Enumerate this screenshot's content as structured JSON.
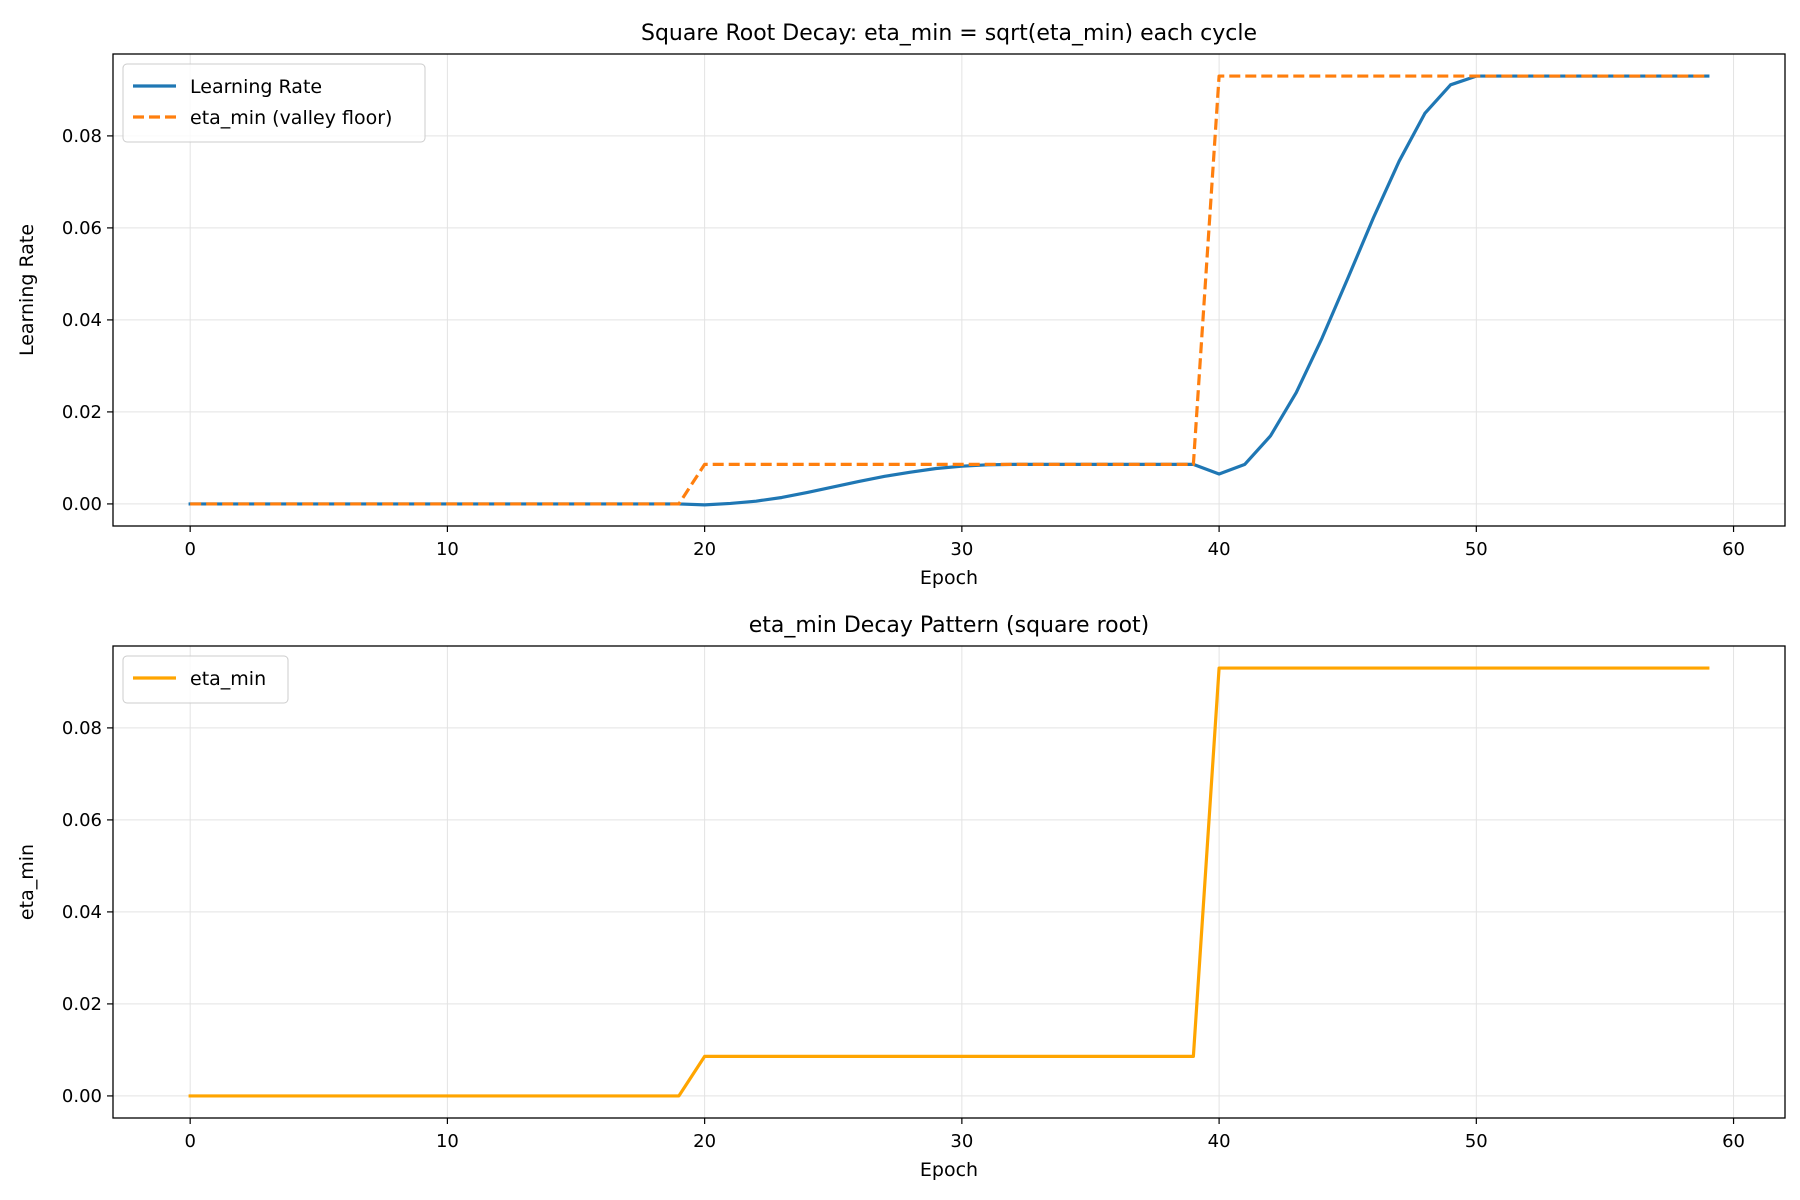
{
  "chart_data": [
    {
      "type": "line",
      "title": "Square Root Decay: eta_min = sqrt(eta_min) each cycle",
      "xlabel": "Epoch",
      "ylabel": "Learning Rate",
      "xlim": [
        -3,
        62
      ],
      "ylim": [
        -0.0048,
        0.0978
      ],
      "xticks": [
        0,
        10,
        20,
        30,
        40,
        50,
        60
      ],
      "yticks": [
        0.0,
        0.02,
        0.04,
        0.06,
        0.08
      ],
      "xtick_labels": [
        "0",
        "10",
        "20",
        "30",
        "40",
        "50",
        "60"
      ],
      "ytick_labels": [
        "0.00",
        "0.02",
        "0.04",
        "0.06",
        "0.08"
      ],
      "grid": true,
      "legend_position": "top-left",
      "series": [
        {
          "name": "Learning Rate",
          "color": "#1f77b4",
          "dash": "solid",
          "x": [
            0,
            1,
            2,
            3,
            4,
            5,
            6,
            7,
            8,
            9,
            10,
            11,
            12,
            13,
            14,
            15,
            16,
            17,
            18,
            19,
            20,
            21,
            22,
            23,
            24,
            25,
            26,
            27,
            28,
            29,
            30,
            31,
            32,
            33,
            34,
            35,
            36,
            37,
            38,
            39,
            40,
            41,
            42,
            43,
            44,
            45,
            46,
            47,
            48,
            49,
            50,
            51,
            52,
            53,
            54,
            55,
            56,
            57,
            58,
            59
          ],
          "y": [
            0.0,
            0.0,
            0.0,
            0.0,
            0.0,
            0.0,
            0.0,
            0.0,
            0.0,
            0.0,
            0.0,
            0.0,
            0.0,
            0.0,
            0.0,
            0.0,
            0.0,
            0.0,
            0.0,
            0.0,
            -0.0002,
            0.0001,
            0.0006,
            0.0014,
            0.0025,
            0.0037,
            0.0049,
            0.006,
            0.0069,
            0.0077,
            0.0082,
            0.0085,
            0.0086,
            0.0086,
            0.0086,
            0.0086,
            0.0086,
            0.0086,
            0.0086,
            0.0086,
            0.0065,
            0.0086,
            0.0148,
            0.0242,
            0.036,
            0.049,
            0.0622,
            0.0745,
            0.0849,
            0.0911,
            0.093,
            0.093,
            0.093,
            0.093,
            0.093,
            0.093,
            0.093,
            0.093,
            0.093,
            0.093
          ]
        },
        {
          "name": "eta_min (valley floor)",
          "color": "#ff7f0e",
          "dash": "dashed",
          "x": [
            0,
            1,
            2,
            3,
            4,
            5,
            6,
            7,
            8,
            9,
            10,
            11,
            12,
            13,
            14,
            15,
            16,
            17,
            18,
            19,
            20,
            21,
            22,
            23,
            24,
            25,
            26,
            27,
            28,
            29,
            30,
            31,
            32,
            33,
            34,
            35,
            36,
            37,
            38,
            39,
            40,
            41,
            42,
            43,
            44,
            45,
            46,
            47,
            48,
            49,
            50,
            51,
            52,
            53,
            54,
            55,
            56,
            57,
            58,
            59
          ],
          "y": [
            0.0,
            0.0,
            0.0,
            0.0,
            0.0,
            0.0,
            0.0,
            0.0,
            0.0,
            0.0,
            0.0,
            0.0,
            0.0,
            0.0,
            0.0,
            0.0,
            0.0,
            0.0,
            0.0,
            0.0,
            0.0086,
            0.0086,
            0.0086,
            0.0086,
            0.0086,
            0.0086,
            0.0086,
            0.0086,
            0.0086,
            0.0086,
            0.0086,
            0.0086,
            0.0086,
            0.0086,
            0.0086,
            0.0086,
            0.0086,
            0.0086,
            0.0086,
            0.0086,
            0.093,
            0.093,
            0.093,
            0.093,
            0.093,
            0.093,
            0.093,
            0.093,
            0.093,
            0.093,
            0.093,
            0.093,
            0.093,
            0.093,
            0.093,
            0.093,
            0.093,
            0.093,
            0.093,
            0.093
          ]
        }
      ]
    },
    {
      "type": "line",
      "title": "eta_min Decay Pattern (square root)",
      "xlabel": "Epoch",
      "ylabel": "eta_min",
      "xlim": [
        -3,
        62
      ],
      "ylim": [
        -0.0048,
        0.0978
      ],
      "xticks": [
        0,
        10,
        20,
        30,
        40,
        50,
        60
      ],
      "yticks": [
        0.0,
        0.02,
        0.04,
        0.06,
        0.08
      ],
      "xtick_labels": [
        "0",
        "10",
        "20",
        "30",
        "40",
        "50",
        "60"
      ],
      "ytick_labels": [
        "0.00",
        "0.02",
        "0.04",
        "0.06",
        "0.08"
      ],
      "grid": true,
      "legend_position": "top-left",
      "series": [
        {
          "name": "eta_min",
          "color": "#ffa500",
          "dash": "solid",
          "x": [
            0,
            1,
            2,
            3,
            4,
            5,
            6,
            7,
            8,
            9,
            10,
            11,
            12,
            13,
            14,
            15,
            16,
            17,
            18,
            19,
            20,
            21,
            22,
            23,
            24,
            25,
            26,
            27,
            28,
            29,
            30,
            31,
            32,
            33,
            34,
            35,
            36,
            37,
            38,
            39,
            40,
            41,
            42,
            43,
            44,
            45,
            46,
            47,
            48,
            49,
            50,
            51,
            52,
            53,
            54,
            55,
            56,
            57,
            58,
            59
          ],
          "y": [
            0.0,
            0.0,
            0.0,
            0.0,
            0.0,
            0.0,
            0.0,
            0.0,
            0.0,
            0.0,
            0.0,
            0.0,
            0.0,
            0.0,
            0.0,
            0.0,
            0.0,
            0.0,
            0.0,
            0.0,
            0.0086,
            0.0086,
            0.0086,
            0.0086,
            0.0086,
            0.0086,
            0.0086,
            0.0086,
            0.0086,
            0.0086,
            0.0086,
            0.0086,
            0.0086,
            0.0086,
            0.0086,
            0.0086,
            0.0086,
            0.0086,
            0.0086,
            0.0086,
            0.093,
            0.093,
            0.093,
            0.093,
            0.093,
            0.093,
            0.093,
            0.093,
            0.093,
            0.093,
            0.093,
            0.093,
            0.093,
            0.093,
            0.093,
            0.093,
            0.093,
            0.093,
            0.093,
            0.093
          ]
        }
      ]
    }
  ]
}
